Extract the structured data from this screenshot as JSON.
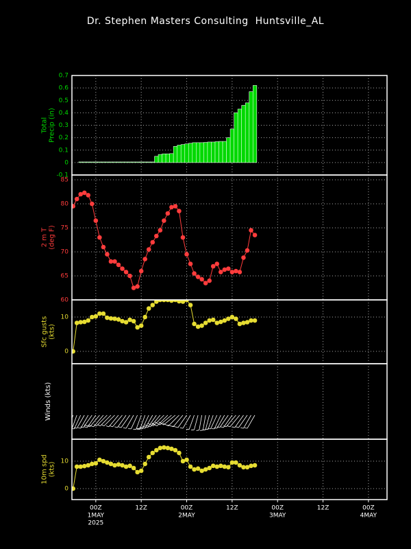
{
  "title": "Dr. Stephen Masters Consulting  Huntsville_AL",
  "x_axis": {
    "x": [
      -6,
      -5,
      -4,
      -3,
      -2,
      -1,
      0,
      1,
      2,
      3,
      4,
      5,
      6,
      7,
      8,
      9,
      10,
      11,
      12,
      13,
      14,
      15,
      16,
      17,
      18,
      19,
      20,
      21,
      22,
      23,
      24,
      25,
      26,
      27,
      28,
      29,
      30,
      31,
      32,
      33,
      34,
      35,
      36,
      37,
      38,
      39,
      40,
      41,
      42
    ],
    "xlim": [
      -6.3,
      76.9
    ],
    "xticks": [
      {
        "value": 0,
        "label": "00Z"
      },
      {
        "value": 12,
        "label": "12Z"
      },
      {
        "value": 24,
        "label": "00Z"
      },
      {
        "value": 36,
        "label": "12Z"
      },
      {
        "value": 48,
        "label": "00Z"
      },
      {
        "value": 60,
        "label": "12Z"
      },
      {
        "value": 72,
        "label": "00Z"
      }
    ],
    "date_labels": [
      {
        "value": 0,
        "label": "1MAY"
      },
      {
        "value": 24,
        "label": "2MAY"
      },
      {
        "value": 48,
        "label": "3MAY"
      },
      {
        "value": 72,
        "label": "4MAY"
      }
    ],
    "year_label": {
      "value": 0,
      "label": "2025"
    },
    "grid": true
  },
  "chart_data": [
    {
      "type": "bar",
      "ylabel": [
        "Total",
        "Precip (in)"
      ],
      "color": "#00d800",
      "label_color": "#00d800",
      "ylim": [
        -0.1,
        0.7
      ],
      "yticks": [
        -0.1,
        0,
        0.1,
        0.2,
        0.3,
        0.4,
        0.5,
        0.6,
        0.7
      ],
      "values": [
        0,
        0,
        0.005,
        0.005,
        0.005,
        0.005,
        0.005,
        0.005,
        0.005,
        0.005,
        0.005,
        0.005,
        0.005,
        0.005,
        0.005,
        0.005,
        0.005,
        0.005,
        0.005,
        0.005,
        0.005,
        0.005,
        0.05,
        0.065,
        0.07,
        0.07,
        0.072,
        0.13,
        0.14,
        0.145,
        0.15,
        0.155,
        0.16,
        0.16,
        0.16,
        0.162,
        0.165,
        0.165,
        0.168,
        0.17,
        0.17,
        0.2,
        0.27,
        0.4,
        0.43,
        0.46,
        0.48,
        0.57,
        0.62
      ]
    },
    {
      "type": "line",
      "ylabel": [
        "2 m T",
        "(deg F)"
      ],
      "color": "#ff3c3c",
      "label_color": "#ff3c3c",
      "ylim": [
        60,
        86
      ],
      "yticks": [
        60,
        65,
        70,
        75,
        80,
        85
      ],
      "values": [
        79.5,
        81,
        82,
        82.3,
        81.8,
        80,
        76.5,
        73,
        71,
        69.5,
        68,
        68,
        67.3,
        66.5,
        65.8,
        65,
        62.5,
        62.8,
        66,
        68.5,
        70.5,
        72,
        73.3,
        74.5,
        76.5,
        78,
        79.3,
        79.5,
        78.5,
        73,
        69.5,
        67.5,
        65.5,
        64.8,
        64.3,
        63.5,
        64,
        67,
        67.5,
        65.8,
        66.3,
        66.5,
        65.8,
        66,
        65.8,
        68.8,
        70.3,
        74.5,
        73.5
      ]
    },
    {
      "type": "line",
      "ylabel": [
        "Sfc gusts",
        "(kts)"
      ],
      "color": "#e6dc32",
      "label_color": "#e6dc32",
      "ylim": [
        -3.6,
        15
      ],
      "yticks": [
        0,
        10
      ],
      "values": [
        0,
        8.3,
        8.5,
        8.6,
        9,
        10,
        10.2,
        11,
        11,
        9.8,
        9.6,
        9.5,
        9.3,
        8.8,
        8.5,
        9.2,
        8.8,
        7,
        7.5,
        10,
        12.5,
        13.5,
        14.5,
        15,
        15,
        15,
        14.8,
        15,
        14.6,
        14.5,
        15,
        13.5,
        8,
        7.2,
        7.5,
        8.3,
        9,
        9.2,
        8.3,
        8.6,
        9,
        9.5,
        10,
        9.5,
        8,
        8.3,
        8.5,
        9,
        9
      ]
    },
    {
      "type": "barbs",
      "ylabel": [
        "Winds (kts)"
      ],
      "color": "#ffffff",
      "label_color": "#ffffff",
      "directions": [
        200,
        200,
        205,
        210,
        210,
        215,
        215,
        220,
        220,
        225,
        225,
        225,
        220,
        220,
        215,
        215,
        210,
        205,
        200,
        200,
        205,
        210,
        215,
        220,
        225,
        225,
        230,
        230,
        225,
        220,
        215,
        210,
        200,
        195,
        190,
        190,
        195,
        200,
        205,
        205,
        210,
        215,
        215,
        220,
        220,
        215,
        215,
        210,
        210
      ]
    },
    {
      "type": "line",
      "ylabel": [
        "10m spd",
        "(kts)"
      ],
      "color": "#e6dc32",
      "label_color": "#e6dc32",
      "ylim": [
        -4,
        18
      ],
      "yticks": [
        0,
        10
      ],
      "values": [
        0,
        8,
        8,
        8.2,
        8.5,
        9,
        9.2,
        10.5,
        10,
        9.5,
        9,
        8.5,
        8.8,
        8.5,
        8,
        8.3,
        7.5,
        6,
        6.5,
        9,
        11.5,
        13,
        14,
        14.8,
        15,
        14.8,
        14.5,
        14,
        13,
        10,
        10.5,
        8,
        7,
        7.3,
        6.5,
        7,
        7.5,
        8.3,
        8,
        8.3,
        8,
        7.8,
        9.5,
        9.5,
        8.5,
        7.8,
        7.8,
        8.3,
        8.5
      ]
    }
  ]
}
